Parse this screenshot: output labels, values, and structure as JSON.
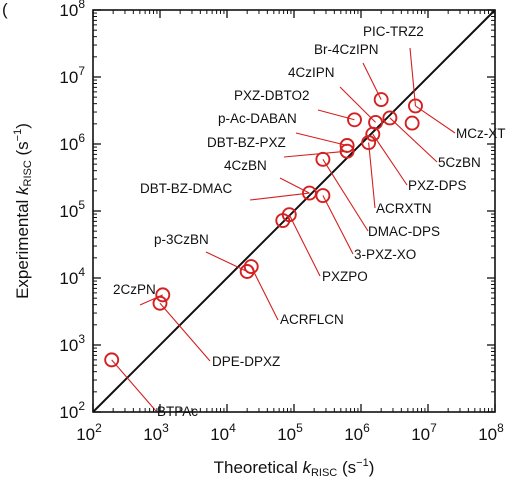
{
  "panel_letter": "(",
  "chart_data": {
    "type": "scatter",
    "title": "",
    "xlabel": "Theoretical kRISC (s⁻¹)",
    "ylabel": "Experimental kRISC (s⁻¹)",
    "x_scale": "log",
    "y_scale": "log",
    "xlim": [
      100,
      100000000
    ],
    "ylim": [
      100,
      100000000
    ],
    "grid": false,
    "reference_line": "y = x",
    "marker_color": "#d42020",
    "line_color": "#111111",
    "x_tick_labels": [
      {
        "value": 100,
        "base": "10",
        "exp": "2"
      },
      {
        "value": 1000,
        "base": "10",
        "exp": "3"
      },
      {
        "value": 10000,
        "base": "10",
        "exp": "4"
      },
      {
        "value": 100000,
        "base": "10",
        "exp": "5"
      },
      {
        "value": 1000000,
        "base": "10",
        "exp": "6"
      },
      {
        "value": 10000000,
        "base": "10",
        "exp": "7"
      },
      {
        "value": 100000000,
        "base": "10",
        "exp": "8"
      }
    ],
    "y_tick_labels": [
      {
        "value": 100,
        "base": "10",
        "exp": "2"
      },
      {
        "value": 1000,
        "base": "10",
        "exp": "3"
      },
      {
        "value": 10000,
        "base": "10",
        "exp": "4"
      },
      {
        "value": 100000,
        "base": "10",
        "exp": "5"
      },
      {
        "value": 1000000,
        "base": "10",
        "exp": "6"
      },
      {
        "value": 10000000,
        "base": "10",
        "exp": "7"
      },
      {
        "value": 100000000,
        "base": "10",
        "exp": "8"
      }
    ],
    "points": [
      {
        "x": 190,
        "y": 600
      },
      {
        "x": 1000,
        "y": 4200
      },
      {
        "x": 1100,
        "y": 5600
      },
      {
        "x": 20000,
        "y": 12500
      },
      {
        "x": 23000,
        "y": 14800
      },
      {
        "x": 68000,
        "y": 72000
      },
      {
        "x": 85000,
        "y": 88000
      },
      {
        "x": 170000,
        "y": 185000
      },
      {
        "x": 270000,
        "y": 170000
      },
      {
        "x": 270000,
        "y": 590000
      },
      {
        "x": 620000,
        "y": 780000
      },
      {
        "x": 620000,
        "y": 950000
      },
      {
        "x": 800000,
        "y": 2300000
      },
      {
        "x": 1300000,
        "y": 1050000
      },
      {
        "x": 1500000,
        "y": 1400000
      },
      {
        "x": 1650000,
        "y": 2100000
      },
      {
        "x": 2000000,
        "y": 4600000
      },
      {
        "x": 2700000,
        "y": 2450000
      },
      {
        "x": 5800000,
        "y": 2050000
      },
      {
        "x": 6500000,
        "y": 3700000
      }
    ],
    "annotations": [
      {
        "text": "PIC-TRZ2",
        "point_x": 6500000,
        "point_y": 3700000
      },
      {
        "text": "Br-4CzIPN",
        "point_x": 2000000,
        "point_y": 4600000
      },
      {
        "text": "4CzIPN",
        "point_x": 1650000,
        "point_y": 2100000
      },
      {
        "text": "PXZ-DBTO2",
        "point_x": 800000,
        "point_y": 2300000
      },
      {
        "text": "p-Ac-DABAN",
        "point_x": 620000,
        "point_y": 950000
      },
      {
        "text": "DBT-BZ-PXZ",
        "point_x": 620000,
        "point_y": 780000
      },
      {
        "text": "4CzBN",
        "point_x": 170000,
        "point_y": 185000
      },
      {
        "text": "DBT-BZ-DMAC",
        "point_x": 170000,
        "point_y": 185000
      },
      {
        "text": "p-3CzBN",
        "point_x": 20000,
        "point_y": 12500
      },
      {
        "text": "2CzPN",
        "point_x": 1100,
        "point_y": 5600
      },
      {
        "text": "MCz-XT",
        "point_x": 6500000,
        "point_y": 3700000
      },
      {
        "text": "5CzBN",
        "point_x": 2700000,
        "point_y": 2450000
      },
      {
        "text": "PXZ-DPS",
        "point_x": 1500000,
        "point_y": 1400000
      },
      {
        "text": "ACRXTN",
        "point_x": 1300000,
        "point_y": 1050000
      },
      {
        "text": "DMAC-DPS",
        "point_x": 270000,
        "point_y": 590000
      },
      {
        "text": "3-PXZ-XO",
        "point_x": 270000,
        "point_y": 170000
      },
      {
        "text": "PXZPO",
        "point_x": 85000,
        "point_y": 88000
      },
      {
        "text": "ACRFLCN",
        "point_x": 23000,
        "point_y": 14800
      },
      {
        "text": "DPE-DPXZ",
        "point_x": 1000,
        "point_y": 4200
      },
      {
        "text": "BTPAc",
        "point_x": 190,
        "point_y": 600
      }
    ]
  }
}
